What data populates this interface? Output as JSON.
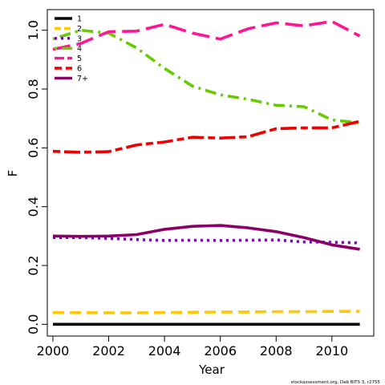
{
  "chart_data": {
    "type": "line",
    "xlabel": "Year",
    "ylabel": "F",
    "xlim": [
      1999.8,
      2011.5
    ],
    "ylim": [
      -0.04,
      1.07
    ],
    "x_ticks": [
      2000,
      2002,
      2004,
      2006,
      2008,
      2010
    ],
    "y_ticks": [
      0.0,
      0.2,
      0.4,
      0.6,
      0.8,
      1.0
    ],
    "y_tick_labels": [
      "0.0",
      "0.2",
      "0.4",
      "0.6",
      "0.8",
      "1.0"
    ],
    "grid": false,
    "legend_position": "top-left",
    "x": [
      2000,
      2001,
      2002,
      2003,
      2004,
      2005,
      2006,
      2007,
      2008,
      2009,
      2010,
      2011
    ],
    "series": [
      {
        "name": "1",
        "color": "#000000",
        "dash": "solid",
        "values": [
          0.0,
          0.0,
          0.0,
          0.0,
          0.0,
          0.0,
          0.0,
          0.0,
          0.0,
          0.0,
          0.0,
          0.0
        ]
      },
      {
        "name": "2",
        "color": "#FFC800",
        "dash": "dashed",
        "values": [
          0.04,
          0.04,
          0.039,
          0.039,
          0.04,
          0.041,
          0.042,
          0.042,
          0.043,
          0.043,
          0.044,
          0.044
        ]
      },
      {
        "name": "3",
        "color": "#6A0DAD",
        "dash": "dotted",
        "values": [
          0.295,
          0.295,
          0.292,
          0.288,
          0.285,
          0.286,
          0.285,
          0.286,
          0.287,
          0.28,
          0.279,
          0.277
        ]
      },
      {
        "name": "4",
        "color": "#66CC00",
        "dash": "dotdash",
        "values": [
          0.97,
          1.0,
          0.99,
          0.94,
          0.87,
          0.81,
          0.78,
          0.765,
          0.745,
          0.74,
          0.695,
          0.685
        ]
      },
      {
        "name": "5",
        "color": "#FF1493",
        "dash": "longdash",
        "values": [
          0.935,
          0.955,
          0.995,
          0.997,
          1.02,
          0.99,
          0.97,
          1.005,
          1.025,
          1.015,
          1.03,
          0.98
        ]
      },
      {
        "name": "6",
        "color": "#EE0000",
        "dash": "twodash",
        "values": [
          0.588,
          0.585,
          0.587,
          0.61,
          0.62,
          0.636,
          0.633,
          0.638,
          0.665,
          0.668,
          0.668,
          0.69
        ]
      },
      {
        "name": "7+",
        "color": "#8B0066",
        "dash": "solid",
        "values": [
          0.3,
          0.299,
          0.3,
          0.305,
          0.323,
          0.333,
          0.336,
          0.328,
          0.315,
          0.295,
          0.27,
          0.255
        ]
      }
    ],
    "credit": "stockassessment.org, Dab BITS 3, r2755"
  }
}
